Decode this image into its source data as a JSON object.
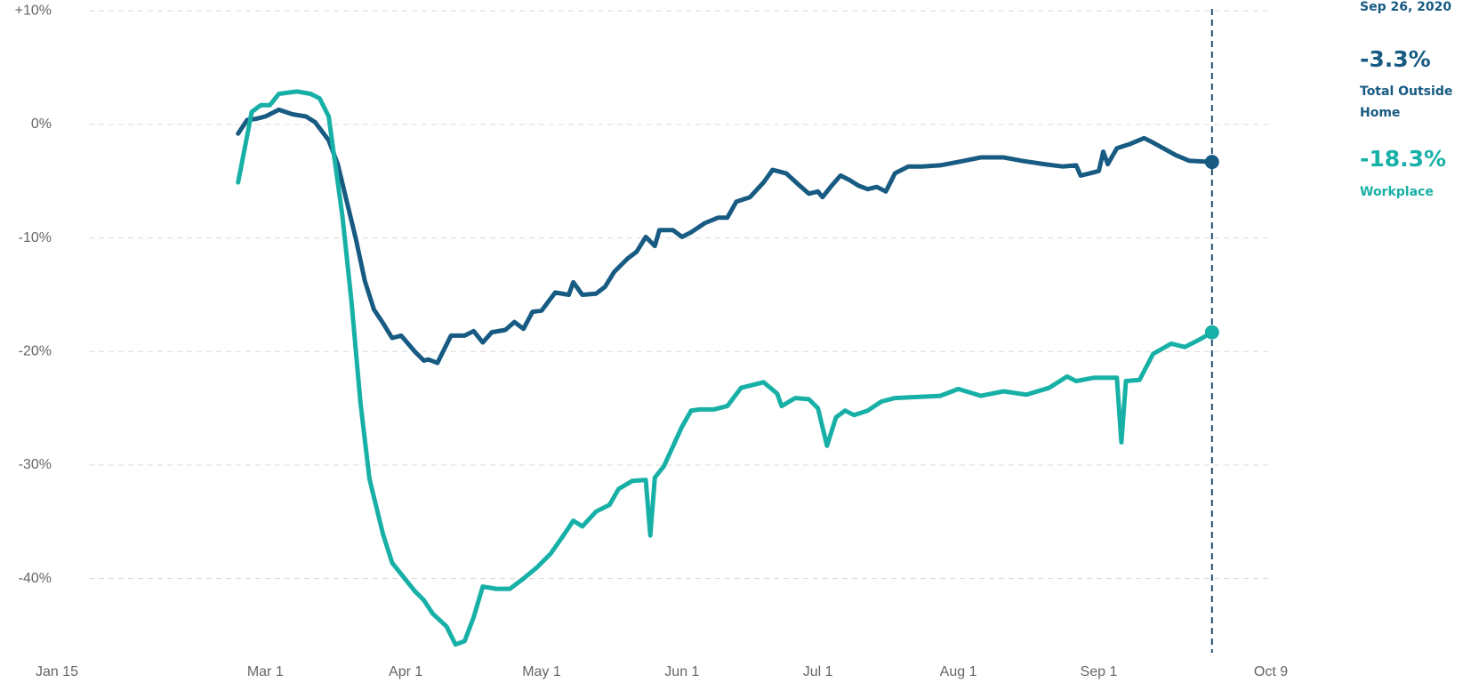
{
  "chart_data": {
    "type": "line",
    "xlim": [
      "Jan 15",
      "Oct 9"
    ],
    "xticks": [
      "Jan 15",
      "Mar 1",
      "Apr 1",
      "May 1",
      "Jun 1",
      "Jul 1",
      "Aug 1",
      "Sep 1",
      "Oct 9"
    ],
    "ylim": [
      -47,
      10
    ],
    "yticks": [
      {
        "value": 10,
        "label": "+10%"
      },
      {
        "value": 0,
        "label": "0%"
      },
      {
        "value": -10,
        "label": "-10%"
      },
      {
        "value": -20,
        "label": "-20%"
      },
      {
        "value": -30,
        "label": "-30%"
      },
      {
        "value": -40,
        "label": "-40%"
      }
    ],
    "grid": true,
    "series": [
      {
        "name": "Total Outside Home",
        "color": "#175a82",
        "x": [
          "Feb 24",
          "Feb 26",
          "Feb 28",
          "Mar 1",
          "Mar 4",
          "Mar 7",
          "Mar 10",
          "Mar 12",
          "Mar 15",
          "Mar 17",
          "Mar 19",
          "Mar 21",
          "Mar 23",
          "Mar 25",
          "Mar 27",
          "Mar 29",
          "Mar 31",
          "Apr 3",
          "Apr 5",
          "Apr 6",
          "Apr 8",
          "Apr 11",
          "Apr 14",
          "Apr 16",
          "Apr 18",
          "Apr 20",
          "Apr 23",
          "Apr 25",
          "Apr 27",
          "Apr 29",
          "May 1",
          "May 4",
          "May 7",
          "May 8",
          "May 10",
          "May 13",
          "May 15",
          "May 17",
          "May 20",
          "May 22",
          "May 24",
          "May 26",
          "May 27",
          "May 30",
          "Jun 1",
          "Jun 3",
          "Jun 6",
          "Jun 9",
          "Jun 11",
          "Jun 13",
          "Jun 16",
          "Jun 19",
          "Jun 21",
          "Jun 24",
          "Jun 27",
          "Jun 29",
          "Jul 1",
          "Jul 2",
          "Jul 4",
          "Jul 6",
          "Jul 8",
          "Jul 10",
          "Jul 12",
          "Jul 14",
          "Jul 16",
          "Jul 18",
          "Jul 21",
          "Jul 24",
          "Jul 28",
          "Aug 1",
          "Aug 6",
          "Aug 11",
          "Aug 15",
          "Aug 20",
          "Aug 24",
          "Aug 27",
          "Aug 28",
          "Aug 30",
          "Sep 1",
          "Sep 2",
          "Sep 3",
          "Sep 5",
          "Sep 8",
          "Sep 11",
          "Sep 13",
          "Sep 18",
          "Sep 21",
          "Sep 26"
        ],
        "values": [
          -0.8,
          0.4,
          0.5,
          0.7,
          1.3,
          0.9,
          0.7,
          0.2,
          -1.4,
          -3.5,
          -6.8,
          -10.1,
          -13.8,
          -16.3,
          -17.5,
          -18.8,
          -18.6,
          -20.0,
          -20.8,
          -20.7,
          -21.0,
          -18.6,
          -18.6,
          -18.2,
          -19.2,
          -18.3,
          -18.1,
          -17.4,
          -18.0,
          -16.5,
          -16.4,
          -14.8,
          -15.0,
          -13.9,
          -15.0,
          -14.9,
          -14.3,
          -13.0,
          -11.8,
          -11.2,
          -9.9,
          -10.7,
          -9.3,
          -9.3,
          -9.9,
          -9.5,
          -8.7,
          -8.2,
          -8.2,
          -6.8,
          -6.4,
          -5.1,
          -4.0,
          -4.3,
          -5.4,
          -6.1,
          -5.9,
          -6.4,
          -5.4,
          -4.5,
          -4.9,
          -5.4,
          -5.7,
          -5.5,
          -5.9,
          -4.3,
          -3.7,
          -3.7,
          -3.6,
          -3.3,
          -2.9,
          -2.9,
          -3.2,
          -3.5,
          -3.7,
          -3.6,
          -4.5,
          -4.3,
          -4.1,
          -2.4,
          -3.5,
          -2.1,
          -1.7,
          -1.2,
          -1.6,
          -2.7,
          -3.2,
          -3.3
        ]
      },
      {
        "name": "Workplace",
        "color": "#17b0a6",
        "x": [
          "Feb 24",
          "Feb 26",
          "Feb 27",
          "Feb 29",
          "Mar 2",
          "Mar 4",
          "Mar 8",
          "Mar 11",
          "Mar 13",
          "Mar 15",
          "Mar 16",
          "Mar 18",
          "Mar 20",
          "Mar 22",
          "Mar 24",
          "Mar 27",
          "Mar 29",
          "Apr 3",
          "Apr 5",
          "Apr 7",
          "Apr 10",
          "Apr 12",
          "Apr 14",
          "Apr 16",
          "Apr 18",
          "Apr 21",
          "Apr 24",
          "Apr 27",
          "Apr 30",
          "May 3",
          "May 6",
          "May 8",
          "May 10",
          "May 13",
          "May 16",
          "May 18",
          "May 21",
          "May 24",
          "May 25",
          "May 26",
          "May 28",
          "Jun 1",
          "Jun 3",
          "Jun 5",
          "Jun 8",
          "Jun 11",
          "Jun 14",
          "Jun 17",
          "Jun 19",
          "Jun 22",
          "Jun 23",
          "Jun 26",
          "Jun 29",
          "Jul 1",
          "Jul 3",
          "Jul 5",
          "Jul 7",
          "Jul 9",
          "Jul 12",
          "Jul 15",
          "Jul 18",
          "Jul 28",
          "Aug 1",
          "Aug 6",
          "Aug 11",
          "Aug 16",
          "Aug 21",
          "Aug 25",
          "Aug 27",
          "Aug 31",
          "Sep 5",
          "Sep 6",
          "Sep 7",
          "Sep 10",
          "Sep 13",
          "Sep 17",
          "Sep 20",
          "Sep 23",
          "Sep 26"
        ],
        "values": [
          -5.1,
          -1.0,
          1.1,
          1.7,
          1.7,
          2.7,
          2.9,
          2.7,
          2.3,
          0.7,
          -2.2,
          -8.0,
          -15.5,
          -24.5,
          -31.2,
          -36.1,
          -38.6,
          -41.1,
          -41.9,
          -43.1,
          -44.2,
          -45.8,
          -45.5,
          -43.4,
          -40.7,
          -40.9,
          -40.9,
          -40.0,
          -39.0,
          -37.8,
          -36.1,
          -34.9,
          -35.4,
          -34.1,
          -33.5,
          -32.1,
          -31.4,
          -31.3,
          -36.2,
          -31.1,
          -30.1,
          -26.6,
          -25.2,
          -25.1,
          -25.1,
          -24.8,
          -23.2,
          -22.9,
          -22.7,
          -23.7,
          -24.8,
          -24.1,
          -24.2,
          -25.0,
          -28.3,
          -25.8,
          -25.2,
          -25.6,
          -25.2,
          -24.4,
          -24.1,
          -23.9,
          -23.3,
          -23.9,
          -23.5,
          -23.8,
          -23.2,
          -22.2,
          -22.6,
          -22.3,
          -22.3,
          -28.0,
          -22.6,
          -22.5,
          -20.2,
          -19.3,
          -19.6,
          -19.0,
          -18.3
        ]
      }
    ],
    "highlight": {
      "date": "Sep 26, 2020",
      "values": [
        -3.3,
        -18.3
      ],
      "value_labels": [
        "-3.3%",
        "-18.3%"
      ]
    }
  }
}
